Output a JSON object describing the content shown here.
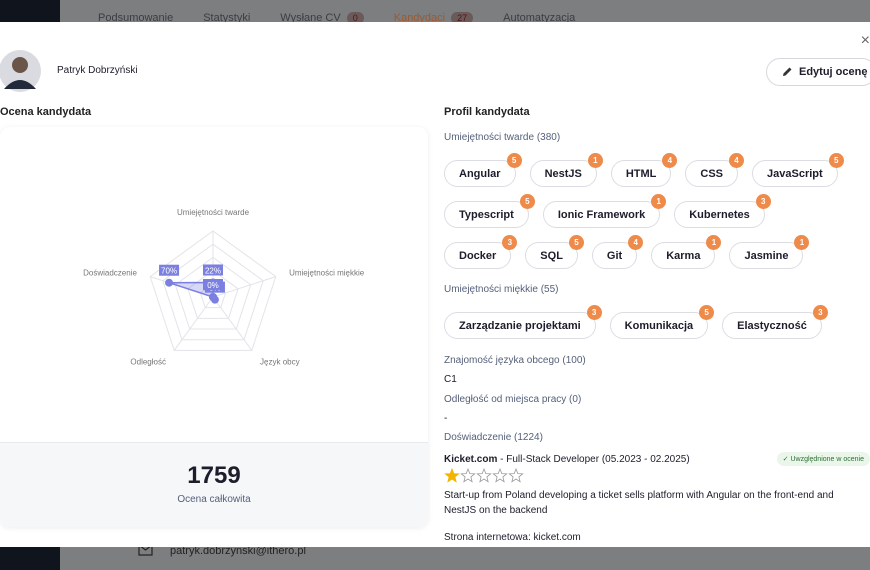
{
  "background": {
    "tabs": [
      {
        "label": "Podsumowanie"
      },
      {
        "label": "Statystyki"
      },
      {
        "label": "Wysłane CV",
        "count": 0
      },
      {
        "label": "Kandydaci",
        "count": 27
      },
      {
        "label": "Automatyzacja"
      }
    ],
    "email": "patryk.dobrzynski@ithero.pl"
  },
  "header": {
    "name": "Patryk Dobrzyński",
    "edit_button": "Edytuj ocenę"
  },
  "rating": {
    "title": "Ocena kandydata",
    "total": 1759,
    "total_label": "Ocena całkowita"
  },
  "chart_data": {
    "type": "radar",
    "categories": [
      "Umiejętności twarde",
      "Umiejętności miękkie",
      "Język obcy",
      "Odległość",
      "Doświadczenie"
    ],
    "values": [
      22,
      0,
      5,
      0,
      70
    ],
    "value_labels": [
      "22%",
      "0%",
      "5%",
      "0%",
      "70%"
    ],
    "rlim": [
      0,
      100
    ],
    "rticks": [
      20,
      40,
      60,
      80,
      100
    ],
    "color": "#7b7fe0"
  },
  "profile": {
    "title": "Profil kandydata",
    "hard_skills": {
      "heading": "Umiejętności twarde (380)",
      "items": [
        {
          "name": "Angular",
          "level": 5
        },
        {
          "name": "NestJS",
          "level": 1
        },
        {
          "name": "HTML",
          "level": 4
        },
        {
          "name": "CSS",
          "level": 4
        },
        {
          "name": "JavaScript",
          "level": 5
        },
        {
          "name": "Typescript",
          "level": 5
        },
        {
          "name": "Ionic Framework",
          "level": 1
        },
        {
          "name": "Kubernetes",
          "level": 3
        },
        {
          "name": "Docker",
          "level": 3
        },
        {
          "name": "SQL",
          "level": 5
        },
        {
          "name": "Git",
          "level": 4
        },
        {
          "name": "Karma",
          "level": 1
        },
        {
          "name": "Jasmine",
          "level": 1
        }
      ]
    },
    "soft_skills": {
      "heading": "Umiejętności miękkie (55)",
      "items": [
        {
          "name": "Zarządzanie projektami",
          "level": 3
        },
        {
          "name": "Komunikacja",
          "level": 5
        },
        {
          "name": "Elastyczność",
          "level": 3
        }
      ]
    },
    "language": {
      "heading": "Znajomość języka obcego (100)",
      "value": "C1"
    },
    "distance": {
      "heading": "Odległość od miejsca pracy (0)",
      "value": "-"
    },
    "experience": {
      "heading": "Doświadczenie (1224)",
      "company": "Kicket.com",
      "role": " - Full-Stack Developer (05.2023 - 02.2025)",
      "badge": "Uwzględnione w ocenie",
      "stars": 1,
      "stars_max": 5,
      "description": "Start-up from Poland developing a ticket sells platform with Angular on the front-end and NestJS on the backend",
      "website": "Strona internetowa: kicket.com"
    }
  }
}
